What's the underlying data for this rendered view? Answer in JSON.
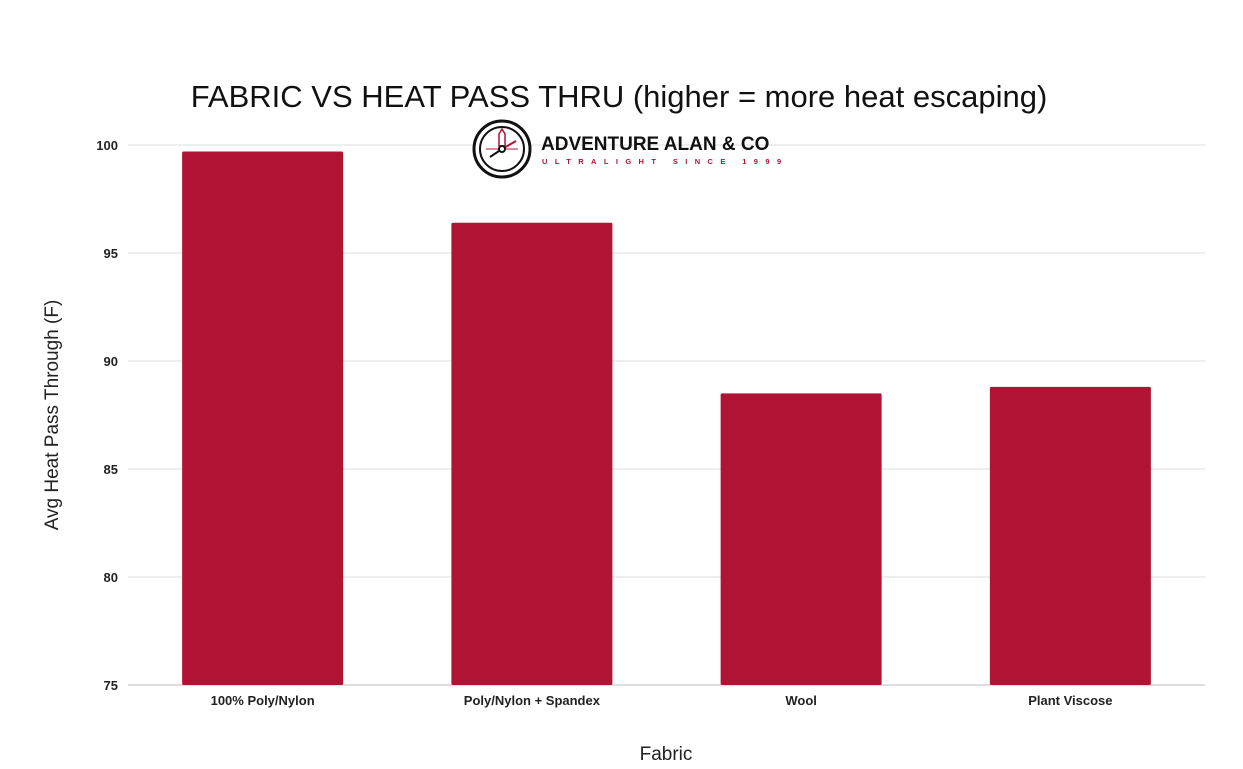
{
  "chart_data": {
    "type": "bar",
    "title": "FABRIC VS HEAT PASS THRU (higher = more heat escaping)",
    "xlabel": "Fabric",
    "ylabel": "Avg Heat Pass Through (F)",
    "categories": [
      "100% Poly/Nylon",
      "Poly/Nylon + Spandex",
      "Wool",
      "Plant Viscose"
    ],
    "values": [
      99.7,
      96.4,
      88.5,
      88.8
    ],
    "ylim": [
      75,
      100
    ],
    "yticks": [
      75,
      80,
      85,
      90,
      95,
      100
    ],
    "grid": true,
    "legend": "none",
    "bar_color": "#b01434"
  },
  "logo": {
    "name": "ADVENTURE ALAN & CO",
    "tagline": "ULTRALIGHT SINCE 1999"
  }
}
